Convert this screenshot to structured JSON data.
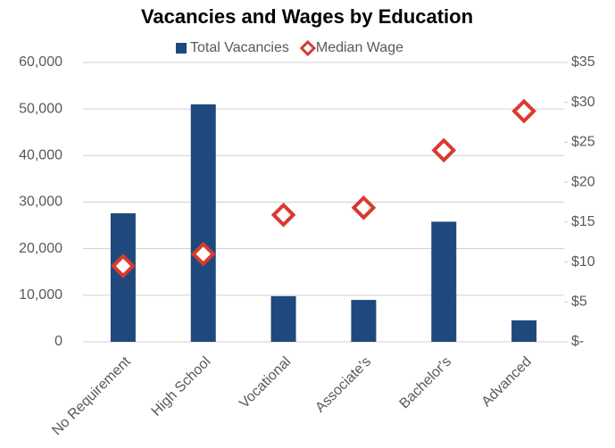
{
  "chart_data": {
    "type": "bar",
    "title": "Vacancies and Wages by Education",
    "categories": [
      "No Requirement",
      "High School",
      "Vocational",
      "Associate's",
      "Bachelor's",
      "Advanced"
    ],
    "series": [
      {
        "name": "Total Vacancies",
        "type": "bar",
        "color": "#1f497d",
        "values": [
          27600,
          51000,
          9800,
          9000,
          25800,
          4600
        ]
      },
      {
        "name": "Median Wage",
        "type": "scatter",
        "axis": "y2",
        "color": "#d93a2f",
        "values": [
          9.5,
          11.0,
          15.9,
          16.8,
          24.0,
          28.9
        ]
      }
    ],
    "ylim": [
      0,
      60000
    ],
    "yticks": [
      0,
      {
        "value": 10000,
        "label": "10,000"
      },
      {
        "value": 20000,
        "label": "20,000"
      },
      {
        "value": 30000,
        "label": "30,000"
      },
      {
        "value": 40000,
        "label": "40,000"
      },
      {
        "value": 50000,
        "label": "50,000"
      },
      {
        "value": 60000,
        "label": "60,000"
      }
    ],
    "y2lim": [
      0,
      35
    ],
    "y2ticks": [
      {
        "value": 0,
        "label": "$-"
      },
      {
        "value": 5,
        "label": "$5"
      },
      {
        "value": 10,
        "label": "$10"
      },
      {
        "value": 15,
        "label": "$15"
      },
      {
        "value": 20,
        "label": "$20"
      },
      {
        "value": 25,
        "label": "$25"
      },
      {
        "value": 30,
        "label": "$30"
      },
      {
        "value": 35,
        "label": "$35"
      }
    ],
    "grid": true,
    "legend": "top"
  }
}
